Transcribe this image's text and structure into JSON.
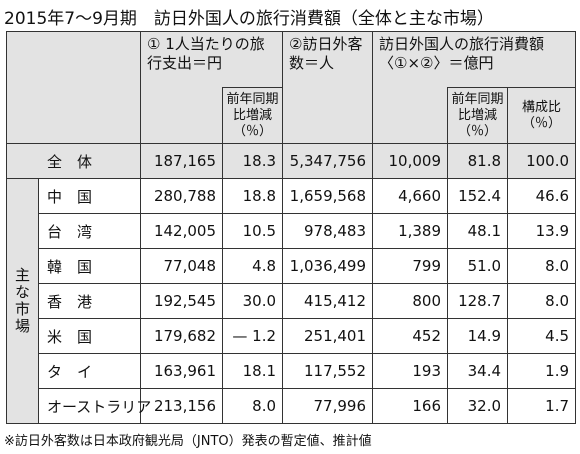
{
  "title": "2015年7～9月期　訪日外国人の旅行消費額（全体と主な市場）",
  "table": {
    "header": {
      "per_person": "① 1人当たりの旅行支出＝円",
      "visitors": "②訪日外客数＝人",
      "total_spend": "訪日外国人の旅行消費額〈①×②〉＝億円",
      "per_person_change": "前年同期比増減（％）",
      "total_spend_change": "前年同期比増減（％）",
      "share": "構成比（％）"
    },
    "total": {
      "label": "全　体",
      "cells": [
        "187,165",
        "18.3",
        "5,347,756",
        "10,009",
        "81.8",
        "100.0"
      ]
    },
    "group_label": "主な市場",
    "rows": [
      {
        "label": "中　国",
        "cells": [
          "280,788",
          "18.8",
          "1,659,568",
          "4,660",
          "152.4",
          "46.6"
        ]
      },
      {
        "label": "台　湾",
        "cells": [
          "142,005",
          "10.5",
          "978,483",
          "1,389",
          "48.1",
          "13.9"
        ]
      },
      {
        "label": "韓　国",
        "cells": [
          "77,048",
          "4.8",
          "1,036,499",
          "799",
          "51.0",
          "8.0"
        ]
      },
      {
        "label": "香　港",
        "cells": [
          "192,545",
          "30.0",
          "415,412",
          "800",
          "128.7",
          "8.0"
        ]
      },
      {
        "label": "米　国",
        "cells": [
          "179,682",
          "— 1.2",
          "251,401",
          "452",
          "14.9",
          "4.5"
        ]
      },
      {
        "label": "タ　イ",
        "cells": [
          "163,961",
          "18.1",
          "117,552",
          "193",
          "34.4",
          "1.9"
        ]
      },
      {
        "label": "オーストラリア",
        "cells": [
          "213,156",
          "8.0",
          "77,996",
          "166",
          "32.0",
          "1.7"
        ]
      }
    ]
  },
  "footnote": "※訪日外客数は日本政府観光局（JNTO）発表の暫定値、推計値"
}
